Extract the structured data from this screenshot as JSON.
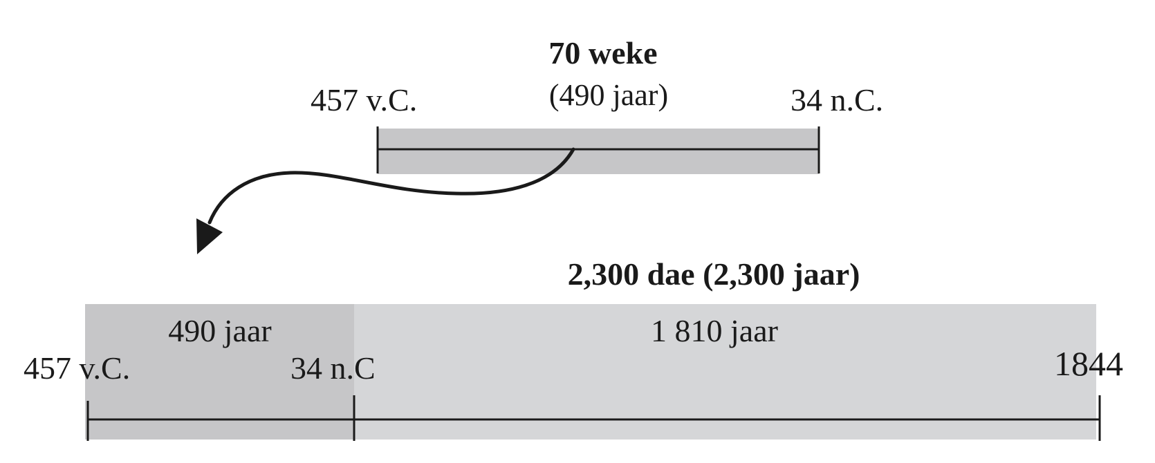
{
  "top_timeline": {
    "title": "70 weke",
    "subtitle": "(490 jaar)",
    "start_label": "457 v.C.",
    "end_label": "34 n.C."
  },
  "bottom_timeline": {
    "title": "2,300 dae (2,300 jaar)",
    "segments": [
      {
        "label": "490 jaar",
        "years": 490
      },
      {
        "label": "1 810 jaar",
        "years": 1810
      }
    ],
    "start_label": "457 v.C.",
    "mid_label": "34 n.C",
    "end_label": "1844"
  },
  "colors": {
    "bar_dark": "#c6c6c8",
    "bar_light": "#d5d6d8",
    "line": "#1a1a1a"
  }
}
